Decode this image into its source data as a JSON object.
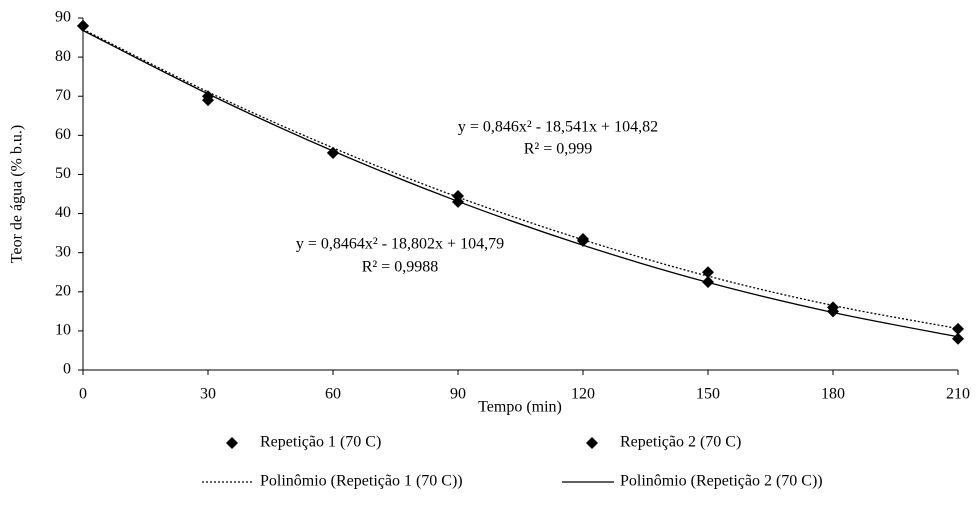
{
  "chart_data": {
    "type": "scatter",
    "x_label": "Tempo (min)",
    "y_label": "Teor de água (% b.u.)",
    "x": [
      0,
      30,
      60,
      90,
      120,
      150,
      180,
      210
    ],
    "xlim": [
      0,
      210
    ],
    "xticks": [
      0,
      30,
      60,
      90,
      120,
      150,
      180,
      210
    ],
    "ylim": [
      0,
      90
    ],
    "yticks": [
      0,
      10,
      20,
      30,
      40,
      50,
      60,
      70,
      80,
      90
    ],
    "grid": false,
    "legend": "bottom",
    "series": [
      {
        "name": "Repetição 1 (70   C)",
        "color": "#000000",
        "style": "marker",
        "values": [
          88,
          70,
          55.5,
          44.5,
          33.5,
          25,
          16,
          10.5
        ]
      },
      {
        "name": "Repetição 2 (70   C)",
        "color": "#000000",
        "style": "marker",
        "values": [
          88,
          69,
          55.5,
          43,
          33,
          22.5,
          15,
          8
        ]
      },
      {
        "name": "Polinômio (Repetição 1 (70   C))",
        "color": "#000000",
        "style": "dotted",
        "values": [
          87.1,
          71.1,
          56.8,
          44.2,
          33.3,
          24.0,
          16.5,
          10.6
        ]
      },
      {
        "name": "Polinômio (Repetição 2 (70   C))",
        "color": "#000000",
        "style": "solid",
        "values": [
          86.8,
          70.6,
          56.0,
          43.1,
          31.9,
          22.4,
          14.7,
          8.5
        ]
      }
    ],
    "annotations": [
      "y = 0,846x² - 18,541x + 104,82",
      "R² = 0,999",
      "y = 0,8464x² - 18,802x + 104,79",
      "R² = 0,9988"
    ]
  }
}
